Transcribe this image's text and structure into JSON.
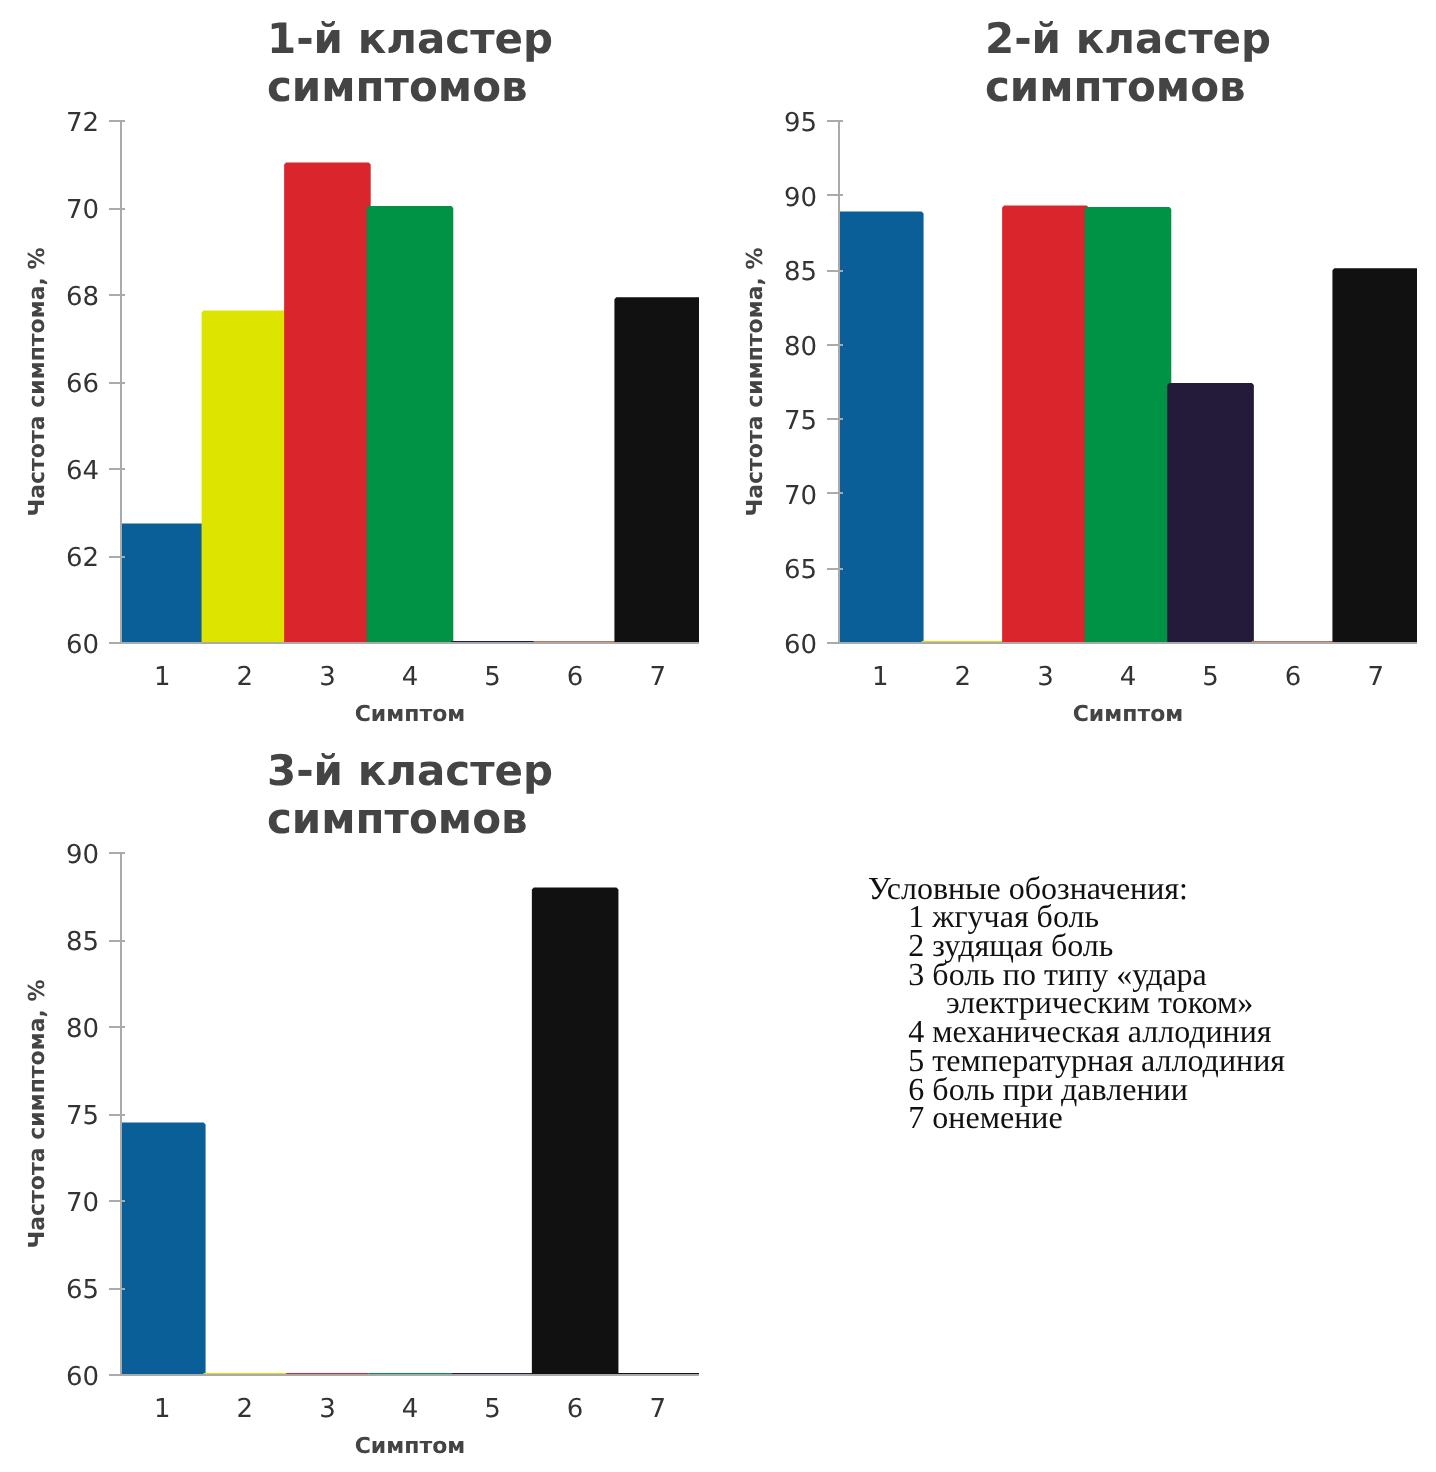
{
  "chart_data": [
    {
      "type": "bar",
      "title": "1-й кластер симптомов",
      "xlabel": "Симптом",
      "ylabel": "Частота симптома, %",
      "categories": [
        "1",
        "2",
        "3",
        "4",
        "5",
        "6",
        "7"
      ],
      "values": [
        62.7,
        67.6,
        71.0,
        70.0,
        60,
        60,
        67.9
      ],
      "colors": [
        "#0b5f98",
        "#dde400",
        "#d9252b",
        "#009245",
        "#241b3a",
        "#c0765a",
        "#111111"
      ],
      "ylim": [
        60,
        72
      ],
      "yticks": [
        60,
        62,
        64,
        66,
        68,
        70,
        72
      ],
      "grid": false
    },
    {
      "type": "bar",
      "title": "2-й кластер симптомов",
      "xlabel": "Симптом",
      "ylabel": "Частота симптома, %",
      "categories": [
        "1",
        "2",
        "3",
        "4",
        "5",
        "6",
        "7"
      ],
      "values": [
        88.8,
        60,
        89.2,
        89.1,
        77.3,
        60,
        85.0
      ],
      "colors": [
        "#0b5f98",
        "#dde400",
        "#d9252b",
        "#009245",
        "#241b3a",
        "#c0765a",
        "#111111"
      ],
      "ylim": [
        60,
        95
      ],
      "yticks": [
        60,
        65,
        70,
        75,
        80,
        85,
        90,
        95
      ],
      "grid": false
    },
    {
      "type": "bar",
      "title": "3-й кластер симптомов",
      "xlabel": "Симптом",
      "ylabel": "Частота симптома, %",
      "categories": [
        "1",
        "2",
        "3",
        "4",
        "5",
        "6",
        "7"
      ],
      "values": [
        74.4,
        60,
        60,
        60,
        60,
        87.9,
        60
      ],
      "colors": [
        "#0b5f98",
        "#dde400",
        "#d9252b",
        "#009245",
        "#241b3a",
        "#111111",
        "#111111"
      ],
      "ylim": [
        60,
        90
      ],
      "yticks": [
        60,
        65,
        70,
        75,
        80,
        85,
        90
      ],
      "grid": false
    },
    {
      "type": "other",
      "title": "Условные обозначения:",
      "annotations": [
        "1 жгучая боль",
        "2 зудящая боль",
        "3 боль по типу «удара электрическим током»",
        "4 механическая аллодиния",
        "5 температурная аллодиния",
        "6 боль при давлении",
        "7 онемение"
      ]
    }
  ]
}
